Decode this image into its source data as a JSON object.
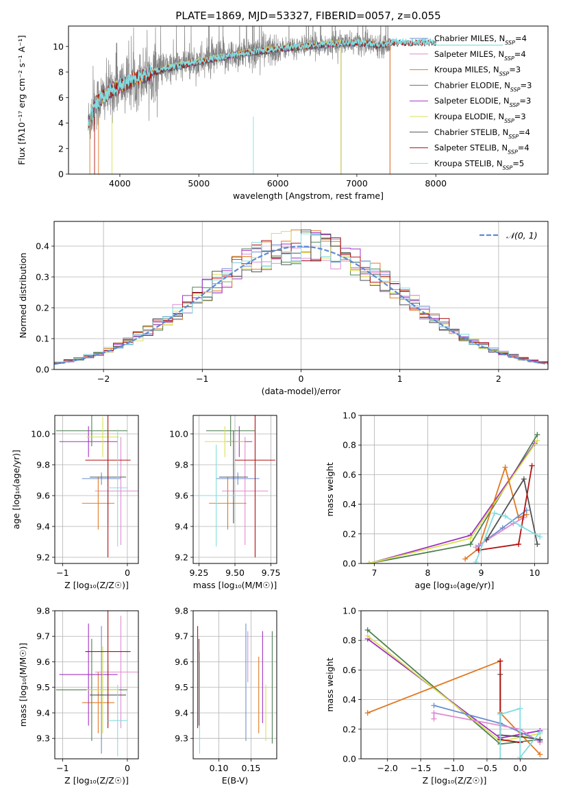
{
  "colors": {
    "Chabrier MILES": "#6a8ed0",
    "Salpeter MILES": "#e08ad0",
    "Kroupa MILES": "#e07820",
    "Chabrier ELODIE": "#4d8050",
    "Salpeter ELODIE": "#a030c0",
    "Kroupa ELODIE": "#d8e050",
    "Chabrier STELIB": "#505050",
    "Salpeter STELIB": "#b01010",
    "Kroupa STELIB": "#80dde0",
    "data": "#808080",
    "gaussian": "#5a8ad8"
  },
  "chart_data": [
    {
      "id": "spectrum",
      "type": "line",
      "title": "PLATE=1869, MJD=53327, FIBERID=0057, z=0.055",
      "xlabel": "wavelength [Angstrom, rest frame]",
      "ylabel": "Flux [fλ10⁻¹⁷ erg cm⁻² s⁻¹ A⁻¹]",
      "xlim": [
        3350,
        9420
      ],
      "ylim": [
        0,
        11.6
      ],
      "xticks": [
        4000,
        5000,
        6000,
        7000,
        8000
      ],
      "yticks": [
        0,
        2,
        4,
        6,
        8,
        10
      ],
      "legend": [
        "Chabrier MILES, N_SSP=4",
        "Salpeter MILES, N_SSP=4",
        "Kroupa MILES, N_SSP=3",
        "Chabrier ELODIE, N_SSP=3",
        "Salpeter ELODIE, N_SSP=3",
        "Kroupa ELODIE, N_SSP=3",
        "Chabrier STELIB, N_SSP=4",
        "Salpeter STELIB, N_SSP=4",
        "Kroupa STELIB, N_SSP=5"
      ],
      "legend_placement": "right",
      "continuum": {
        "x": [
          3600,
          3700,
          3900,
          4100,
          4300,
          4600,
          5000,
          5500,
          6000,
          6500,
          7000,
          7300,
          7430
        ],
        "y": [
          4.0,
          5.6,
          6.6,
          7.2,
          7.7,
          8.3,
          8.8,
          9.4,
          9.8,
          10.1,
          10.3,
          10.1,
          10.3
        ]
      },
      "data_range": [
        3600,
        7430
      ],
      "model_ranges": {
        "MILES": [
          3600,
          7420
        ],
        "ELODIE": [
          3600,
          6800
        ],
        "STELIB": [
          3600,
          8850
        ]
      }
    },
    {
      "id": "residual_hist",
      "type": "step",
      "xlabel": "(data-model)/error",
      "ylabel": "Normed distribution",
      "xlim": [
        -2.5,
        2.5
      ],
      "ylim": [
        0,
        0.48
      ],
      "xticks": [
        -2,
        -1,
        0,
        1,
        2
      ],
      "yticks": [
        0.0,
        0.1,
        0.2,
        0.3,
        0.4
      ],
      "legend": [
        "𝒩(0, 1)"
      ],
      "legend_placement": "upper right",
      "grid": true,
      "bin_width": 0.1
    },
    {
      "id": "age_vs_Z",
      "type": "errorbar",
      "xlabel": "Z [log₁₀(Z/Z☉)]",
      "ylabel": "age  [log₁₀(age/yr)]",
      "xlim": [
        -1.12,
        0.17
      ],
      "ylim": [
        9.16,
        10.12
      ],
      "xticks": [
        -1,
        0
      ],
      "xticklabels": [
        "−1",
        "0"
      ],
      "yticks": [
        9.2,
        9.4,
        9.6,
        9.8,
        10.0
      ],
      "grid": true,
      "points": [
        {
          "m": "Chabrier MILES",
          "x": -0.4,
          "xe": 0.3,
          "y": 9.71,
          "ye": 0.04
        },
        {
          "m": "Salpeter MILES",
          "x": -0.1,
          "xe": 0.4,
          "y": 9.63,
          "ye": 0.35
        },
        {
          "m": "Kroupa MILES",
          "x": -0.45,
          "xe": 0.25,
          "y": 9.55,
          "ye": 0.17
        },
        {
          "m": "Chabrier ELODIE",
          "x": -0.55,
          "xe": 0.55,
          "y": 10.02,
          "ye": 0.1
        },
        {
          "m": "Salpeter ELODIE",
          "x": -0.6,
          "xe": 0.45,
          "y": 9.95,
          "ye": 0.1
        },
        {
          "m": "Kroupa ELODIE",
          "x": -0.38,
          "xe": 0.25,
          "y": 9.98,
          "ye": 0.13
        },
        {
          "m": "Chabrier STELIB",
          "x": -0.3,
          "xe": 0.28,
          "y": 9.72,
          "ye": 0.3
        },
        {
          "m": "Salpeter STELIB",
          "x": -0.3,
          "xe": 0.35,
          "y": 9.83,
          "ye": 0.63
        },
        {
          "m": "Kroupa STELIB",
          "x": -0.15,
          "xe": 0.15,
          "y": 9.65,
          "ye": 0.38
        }
      ]
    },
    {
      "id": "age_vs_mass",
      "type": "errorbar",
      "xlabel": "mass [log₁₀(M/M☉)]",
      "xlim": [
        9.21,
        9.79
      ],
      "ylim": [
        9.16,
        10.12
      ],
      "xticks": [
        9.25,
        9.5,
        9.75
      ],
      "xticklabels": [
        "9.25",
        "9.50",
        "9.75"
      ],
      "yticks": [
        9.2,
        9.4,
        9.6,
        9.8,
        10.0
      ],
      "grid": true,
      "points": [
        {
          "m": "Chabrier MILES",
          "x": 9.52,
          "xe": 0.15,
          "y": 9.71,
          "ye": 0.04
        },
        {
          "m": "Salpeter MILES",
          "x": 9.57,
          "xe": 0.16,
          "y": 9.63,
          "ye": 0.35
        },
        {
          "m": "Kroupa MILES",
          "x": 9.45,
          "xe": 0.13,
          "y": 9.55,
          "ye": 0.17
        },
        {
          "m": "Chabrier ELODIE",
          "x": 9.47,
          "xe": 0.17,
          "y": 10.02,
          "ye": 0.1
        },
        {
          "m": "Salpeter ELODIE",
          "x": 9.53,
          "xe": 0.09,
          "y": 9.95,
          "ye": 0.1
        },
        {
          "m": "Kroupa ELODIE",
          "x": 9.43,
          "xe": 0.14,
          "y": 9.95,
          "ye": 0.1
        },
        {
          "m": "Chabrier STELIB",
          "x": 9.49,
          "xe": 0.1,
          "y": 9.72,
          "ye": 0.3
        },
        {
          "m": "Salpeter STELIB",
          "x": 9.64,
          "xe": 0.14,
          "y": 9.83,
          "ye": 0.63
        },
        {
          "m": "Kroupa STELIB",
          "x": 9.37,
          "xe": 0.14,
          "y": 9.6,
          "ye": 0.33
        }
      ]
    },
    {
      "id": "massweight_vs_age",
      "type": "line",
      "xlabel": "age  [log₁₀(age/yr)]",
      "ylabel": "mass weight",
      "xlim": [
        6.75,
        10.25
      ],
      "ylim": [
        0,
        1.0
      ],
      "xticks": [
        7,
        8,
        9,
        10
      ],
      "yticks": [
        0.0,
        0.2,
        0.4,
        0.6,
        0.8,
        1.0
      ],
      "grid": true,
      "series": [
        {
          "m": "Chabrier ELODIE",
          "x": [
            6.9,
            8.8,
            10.05
          ],
          "y": [
            0.0,
            0.13,
            0.87
          ]
        },
        {
          "m": "Salpeter ELODIE",
          "x": [
            6.9,
            8.8,
            10.0
          ],
          "y": [
            0.0,
            0.19,
            0.81
          ]
        },
        {
          "m": "Kroupa ELODIE",
          "x": [
            6.9,
            8.8,
            10.05
          ],
          "y": [
            0.0,
            0.17,
            0.83
          ]
        },
        {
          "m": "Kroupa MILES",
          "x": [
            8.7,
            8.95,
            9.45,
            9.7,
            9.85
          ],
          "y": [
            0.03,
            0.1,
            0.65,
            0.31,
            0.33
          ]
        },
        {
          "m": "Chabrier MILES",
          "x": [
            8.95,
            9.4,
            9.85
          ],
          "y": [
            0.12,
            0.24,
            0.36
          ]
        },
        {
          "m": "Salpeter MILES",
          "x": [
            8.9,
            9.6,
            9.8
          ],
          "y": [
            0.11,
            0.27,
            0.31
          ]
        },
        {
          "m": "Chabrier STELIB",
          "x": [
            9.1,
            9.8,
            10.05
          ],
          "y": [
            0.16,
            0.57,
            0.13
          ]
        },
        {
          "m": "Salpeter STELIB",
          "x": [
            8.95,
            9.7,
            9.95
          ],
          "y": [
            0.09,
            0.13,
            0.66
          ]
        },
        {
          "m": "Kroupa STELIB",
          "x": [
            8.9,
            9.25,
            9.45,
            9.75,
            10.1
          ],
          "y": [
            0.01,
            0.34,
            0.32,
            0.25,
            0.18
          ]
        }
      ]
    },
    {
      "id": "mass_vs_Z",
      "type": "errorbar",
      "xlabel": "Z [log₁₀(Z/Z☉)]",
      "ylabel": "mass [log₁₀(M/M☉)]",
      "xlim": [
        -1.12,
        0.17
      ],
      "ylim": [
        9.22,
        9.8
      ],
      "xticks": [
        -1,
        0
      ],
      "xticklabels": [
        "−1",
        "0"
      ],
      "yticks": [
        9.3,
        9.4,
        9.5,
        9.6,
        9.7,
        9.8
      ],
      "grid": true,
      "points": [
        {
          "m": "Chabrier MILES",
          "x": -0.4,
          "xe": 0.3,
          "y": 9.49,
          "ye": 0.25
        },
        {
          "m": "Salpeter MILES",
          "x": -0.1,
          "xe": 0.4,
          "y": 9.56,
          "ye": 0.22
        },
        {
          "m": "Kroupa MILES",
          "x": -0.45,
          "xe": 0.25,
          "y": 9.44,
          "ye": 0.12
        },
        {
          "m": "Chabrier ELODIE",
          "x": -0.55,
          "xe": 0.55,
          "y": 9.49,
          "ye": 0.2
        },
        {
          "m": "Salpeter ELODIE",
          "x": -0.6,
          "xe": 0.45,
          "y": 9.55,
          "ye": 0.2
        },
        {
          "m": "Kroupa ELODIE",
          "x": -0.38,
          "xe": 0.25,
          "y": 9.49,
          "ye": 0.17
        },
        {
          "m": "Chabrier STELIB",
          "x": -0.3,
          "xe": 0.28,
          "y": 9.47,
          "ye": 0.12
        },
        {
          "m": "Salpeter STELIB",
          "x": -0.3,
          "xe": 0.35,
          "y": 9.64,
          "ye": 0.3
        },
        {
          "m": "Kroupa STELIB",
          "x": -0.15,
          "xe": 0.15,
          "y": 9.37,
          "ye": 0.14
        }
      ]
    },
    {
      "id": "mass_vs_ebv",
      "type": "errorbar",
      "xlabel": "E(B-V)",
      "xlim": [
        0.06,
        0.19
      ],
      "ylim": [
        9.22,
        9.8
      ],
      "xticks": [
        0.1,
        0.15
      ],
      "xticklabels": [
        "0.10",
        "0.15"
      ],
      "yticks": [
        9.3,
        9.4,
        9.5,
        9.6,
        9.7,
        9.8
      ],
      "grid": true,
      "points": [
        {
          "m": "Salpeter STELIB",
          "x": 0.067,
          "y": 9.54,
          "ye": 0.2
        },
        {
          "m": "Chabrier STELIB",
          "x": 0.069,
          "y": 9.52,
          "ye": 0.17
        },
        {
          "m": "Kroupa STELIB",
          "x": 0.07,
          "y": 9.44,
          "ye": 0.2
        },
        {
          "m": "Chabrier MILES",
          "x": 0.142,
          "y": 9.52,
          "ye": 0.23
        },
        {
          "m": "Salpeter MILES",
          "x": 0.145,
          "y": 9.62,
          "ye": 0.1
        },
        {
          "m": "Kroupa MILES",
          "x": 0.162,
          "y": 9.47,
          "ye": 0.15
        },
        {
          "m": "Salpeter ELODIE",
          "x": 0.168,
          "y": 9.54,
          "ye": 0.18
        },
        {
          "m": "Kroupa ELODIE",
          "x": 0.173,
          "y": 9.4,
          "ye": 0.11
        },
        {
          "m": "Chabrier ELODIE",
          "x": 0.183,
          "y": 9.5,
          "ye": 0.22
        }
      ]
    },
    {
      "id": "massweight_vs_Z",
      "type": "line",
      "xlabel": "Z [log₁₀(Z/Z☉)]",
      "ylabel": "mass weight",
      "xlim": [
        -2.4,
        0.42
      ],
      "ylim": [
        0,
        1.0
      ],
      "xticks": [
        -2.0,
        -1.5,
        -1.0,
        -0.5,
        0.0
      ],
      "xticklabels": [
        "−2.0",
        "−1.5",
        "−1.0",
        "−0.5",
        "0.0"
      ],
      "yticks": [
        0.0,
        0.2,
        0.4,
        0.6,
        0.8,
        1.0
      ],
      "grid": true,
      "series": [
        {
          "m": "Chabrier ELODIE",
          "x": [
            -2.3,
            -0.3,
            0.3
          ],
          "y": [
            0.87,
            0.1,
            0.13
          ]
        },
        {
          "m": "Salpeter ELODIE",
          "x": [
            -2.3,
            -0.3,
            0.3
          ],
          "y": [
            0.81,
            0.14,
            0.19
          ]
        },
        {
          "m": "Kroupa ELODIE",
          "x": [
            -2.3,
            -0.3,
            0.3
          ],
          "y": [
            0.83,
            0.12,
            0.17
          ]
        },
        {
          "m": "Kroupa MILES",
          "x": [
            -2.3,
            -0.3,
            -0.3,
            0.3
          ],
          "y": [
            0.31,
            0.66,
            0.31,
            0.03
          ]
        },
        {
          "m": "Chabrier MILES",
          "x": [
            -1.3,
            -0.3,
            0.3
          ],
          "y": [
            0.36,
            0.24,
            0.12
          ]
        },
        {
          "m": "Salpeter MILES",
          "x": [
            -1.3,
            -1.3,
            0.0,
            0.3
          ],
          "y": [
            0.27,
            0.31,
            0.2,
            0.11
          ]
        },
        {
          "m": "Chabrier STELIB",
          "x": [
            -0.3,
            -0.3,
            0.0,
            0.3
          ],
          "y": [
            0.57,
            0.16,
            0.15,
            0.13
          ]
        },
        {
          "m": "Salpeter STELIB",
          "x": [
            -0.3,
            -0.3,
            -0.3,
            0.0
          ],
          "y": [
            0.66,
            0.13,
            0.13,
            0.11
          ]
        },
        {
          "m": "Kroupa STELIB",
          "x": [
            -0.3,
            -0.3,
            0.0,
            0.0,
            0.3
          ],
          "y": [
            0.0,
            0.3,
            0.34,
            0.01,
            0.18
          ]
        }
      ]
    }
  ]
}
